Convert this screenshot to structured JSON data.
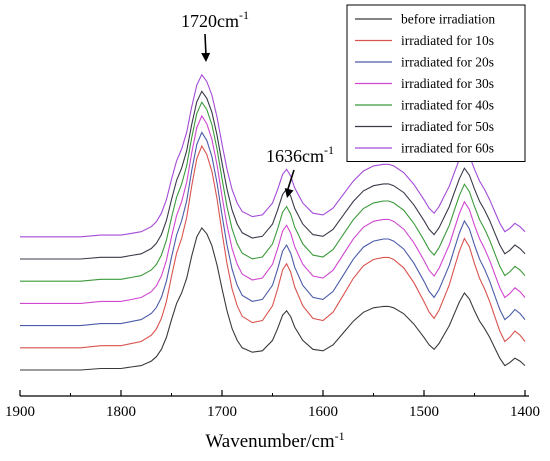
{
  "chart_data": {
    "type": "line",
    "title": "",
    "xlabel": "Wavenumber/cm",
    "xlabel_superscript": "-1",
    "ylabel": "",
    "xlim": [
      1900,
      1400
    ],
    "x_reversed": true,
    "x_ticks": [
      1900,
      1800,
      1700,
      1600,
      1500,
      1400
    ],
    "y_ticks_shown": false,
    "grid": false,
    "legend_position": "top-right",
    "annotations": [
      {
        "text": "1720cm",
        "superscript": "-1",
        "x": 1720
      },
      {
        "text": "1636cm",
        "superscript": "-1",
        "x": 1636
      }
    ],
    "base_profile": {
      "x": [
        1900,
        1880,
        1860,
        1840,
        1820,
        1800,
        1790,
        1780,
        1770,
        1765,
        1760,
        1755,
        1750,
        1745,
        1740,
        1735,
        1730,
        1725,
        1720,
        1715,
        1710,
        1705,
        1700,
        1695,
        1690,
        1685,
        1680,
        1670,
        1660,
        1650,
        1645,
        1640,
        1636,
        1632,
        1628,
        1620,
        1610,
        1600,
        1590,
        1580,
        1570,
        1560,
        1550,
        1540,
        1535,
        1530,
        1520,
        1510,
        1500,
        1495,
        1490,
        1485,
        1480,
        1475,
        1470,
        1465,
        1460,
        1455,
        1450,
        1445,
        1440,
        1435,
        1430,
        1425,
        1420,
        1415,
        1410,
        1405,
        1400
      ],
      "y": [
        0.0,
        0.0,
        0.0,
        0.0,
        0.01,
        0.01,
        0.02,
        0.03,
        0.06,
        0.09,
        0.14,
        0.22,
        0.34,
        0.45,
        0.52,
        0.62,
        0.77,
        0.9,
        0.96,
        0.92,
        0.84,
        0.71,
        0.55,
        0.4,
        0.28,
        0.2,
        0.15,
        0.12,
        0.13,
        0.2,
        0.28,
        0.37,
        0.4,
        0.36,
        0.29,
        0.2,
        0.14,
        0.13,
        0.17,
        0.25,
        0.33,
        0.39,
        0.42,
        0.43,
        0.43,
        0.42,
        0.38,
        0.31,
        0.22,
        0.17,
        0.14,
        0.18,
        0.24,
        0.3,
        0.38,
        0.46,
        0.52,
        0.48,
        0.4,
        0.33,
        0.28,
        0.22,
        0.15,
        0.08,
        0.03,
        0.05,
        0.08,
        0.06,
        0.03
      ]
    },
    "series": [
      {
        "name": "before irradiation",
        "color": "#3a3a3a",
        "offset": 0.0,
        "amplitude": 1.0
      },
      {
        "name": "irradiated for 10s",
        "color": "#d9534f",
        "offset": 0.15,
        "amplitude": 1.42
      },
      {
        "name": "irradiated for 20s",
        "color": "#4b5ca8",
        "offset": 0.3,
        "amplitude": 1.36
      },
      {
        "name": "irradiated for 30s",
        "color": "#d047d0",
        "offset": 0.45,
        "amplitude": 1.32
      },
      {
        "name": "irradiated for 40s",
        "color": "#3b9a3b",
        "offset": 0.6,
        "amplitude": 1.26
      },
      {
        "name": "irradiated for 50s",
        "color": "#3a3a4a",
        "offset": 0.75,
        "amplitude": 1.18
      },
      {
        "name": "irradiated for 60s",
        "color": "#a44bd8",
        "offset": 0.9,
        "amplitude": 1.14
      }
    ]
  }
}
